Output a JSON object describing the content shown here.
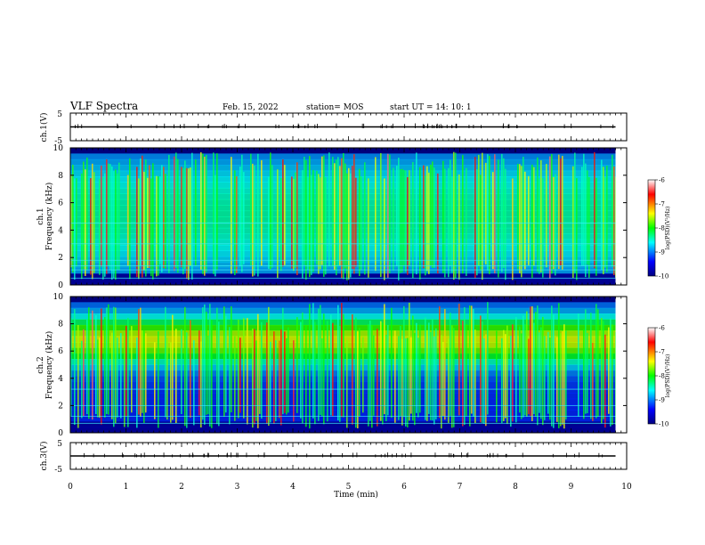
{
  "header": {
    "title": "VLF Spectra",
    "date": "Feb. 15, 2022",
    "station": "station= MOS",
    "start": "start  UT =   14: 10: 1"
  },
  "chart_data": [
    {
      "type": "line",
      "panel": "ch1-voltage",
      "ylabel": "ch.1(V)",
      "ylim": [
        -5,
        5
      ],
      "yticks": [
        "5",
        "-5"
      ],
      "x": [
        0,
        1,
        2,
        3,
        4,
        5,
        6,
        7,
        8,
        9,
        9.8
      ],
      "values": [
        0,
        0,
        0,
        0,
        0,
        0,
        0,
        0,
        0,
        0,
        0
      ]
    },
    {
      "type": "heatmap",
      "panel": "ch1-spectrogram",
      "ylabel": "ch.1\nFrequency (kHz)",
      "ylabel_line1": "ch.1",
      "ylabel_line2": "Frequency (kHz)",
      "ylim": [
        0,
        10
      ],
      "yticks": [
        "0",
        "2",
        "4",
        "6",
        "8",
        "10"
      ],
      "xlim": [
        0,
        10
      ],
      "colorbar": {
        "label": "log(PSD)(V²/Hz)",
        "range": [
          -10,
          -6
        ],
        "ticks": [
          "-6",
          "-7",
          "-8",
          "-9",
          "-10"
        ]
      }
    },
    {
      "type": "heatmap",
      "panel": "ch2-spectrogram",
      "ylabel": "ch.2\nFrequency (kHz)",
      "ylabel_line1": "ch.2",
      "ylabel_line2": "Frequency (kHz)",
      "ylim": [
        0,
        10
      ],
      "yticks": [
        "0",
        "2",
        "4",
        "6",
        "8",
        "10"
      ],
      "xlim": [
        0,
        10
      ],
      "colorbar": {
        "label": "log(PSD)(V²/Hz)",
        "range": [
          -10,
          -6
        ],
        "ticks": [
          "-6",
          "-7",
          "-8",
          "-9",
          "-10"
        ]
      }
    },
    {
      "type": "line",
      "panel": "ch3-voltage",
      "ylabel": "ch.3(V)",
      "ylim": [
        -5,
        5
      ],
      "yticks": [
        "5",
        "-5"
      ],
      "x": [
        0,
        1,
        2,
        3,
        4,
        5,
        6,
        7,
        8,
        9,
        9.8
      ],
      "values": [
        0,
        0,
        0,
        0,
        0,
        0,
        0,
        0,
        0,
        0,
        0
      ]
    }
  ],
  "xaxis": {
    "label": "Time  (min)",
    "range": [
      0,
      10
    ],
    "ticks": [
      "0",
      "1",
      "2",
      "3",
      "4",
      "5",
      "6",
      "7",
      "8",
      "9",
      "10"
    ]
  },
  "colors": {
    "background": "#000000",
    "colormap": [
      "#000080",
      "#0000ff",
      "#00ffff",
      "#00ff00",
      "#ffff00",
      "#ff0000",
      "#ffffff"
    ]
  }
}
